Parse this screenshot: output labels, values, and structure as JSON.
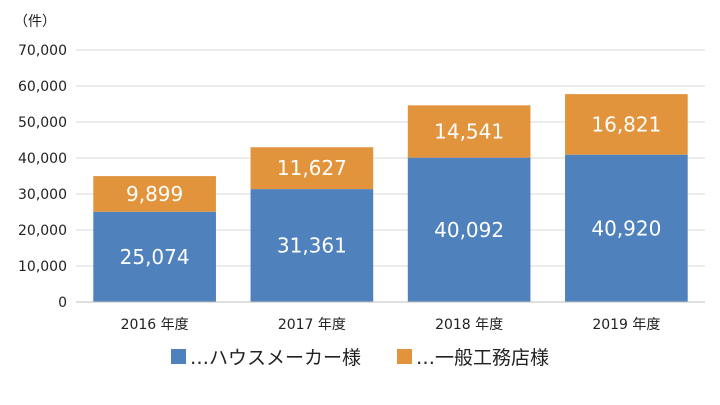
{
  "chart_data": {
    "type": "bar",
    "stacked": true,
    "unit_label": "（件）",
    "categories": [
      "2016 年度",
      "2017 年度",
      "2018 年度",
      "2019 年度"
    ],
    "series": [
      {
        "name": "…ハウスメーカー様",
        "color": "#4F81BD",
        "values": [
          25074,
          31361,
          40092,
          40920
        ],
        "labels": [
          "25,074",
          "31,361",
          "40,092",
          "40,920"
        ]
      },
      {
        "name": "…一般工務店様",
        "color": "#E2943C",
        "values": [
          9899,
          11627,
          14541,
          16821
        ],
        "labels": [
          "9,899",
          "11,627",
          "14,541",
          "16,821"
        ]
      }
    ],
    "ylim": [
      0,
      70000
    ],
    "yticks": [
      0,
      10000,
      20000,
      30000,
      40000,
      50000,
      60000,
      70000
    ],
    "ytick_labels": [
      "0",
      "10,000",
      "20,000",
      "30,000",
      "40,000",
      "50,000",
      "60,000",
      "70,000"
    ],
    "grid": true,
    "legend_position": "bottom"
  }
}
